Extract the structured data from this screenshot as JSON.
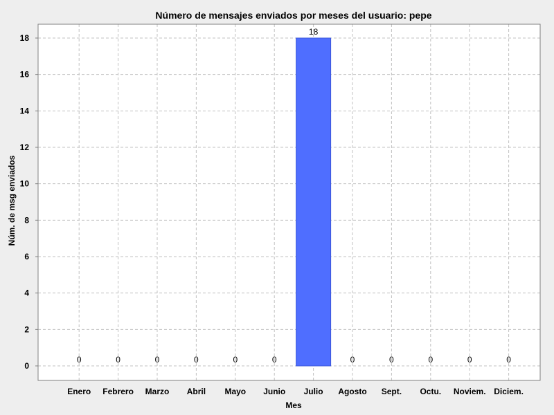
{
  "chart_data": {
    "type": "bar",
    "title": "Número de mensajes enviados por meses del usuario: pepe",
    "xlabel": "Mes",
    "ylabel": "Núm. de msg enviados",
    "categories": [
      "Enero",
      "Febrero",
      "Marzo",
      "Abril",
      "Mayo",
      "Junio",
      "Julio",
      "Agosto",
      "Sept.",
      "Octu.",
      "Noviem.",
      "Diciem."
    ],
    "values": [
      0,
      0,
      0,
      0,
      0,
      0,
      18,
      0,
      0,
      0,
      0,
      0
    ],
    "data_labels": [
      "0",
      "0",
      "0",
      "0",
      "0",
      "0",
      "18",
      "0",
      "0",
      "0",
      "0",
      "0"
    ],
    "y_ticks": [
      "0",
      "2",
      "4",
      "6",
      "8",
      "10",
      "12",
      "14",
      "16",
      "18"
    ],
    "ylim": [
      0,
      18.96
    ],
    "grid": true,
    "bar_color": "#4f6eff",
    "background_color": "#eeeeee",
    "plot_background_color": "#ffffff",
    "grid_color": "#c0c0c0"
  }
}
